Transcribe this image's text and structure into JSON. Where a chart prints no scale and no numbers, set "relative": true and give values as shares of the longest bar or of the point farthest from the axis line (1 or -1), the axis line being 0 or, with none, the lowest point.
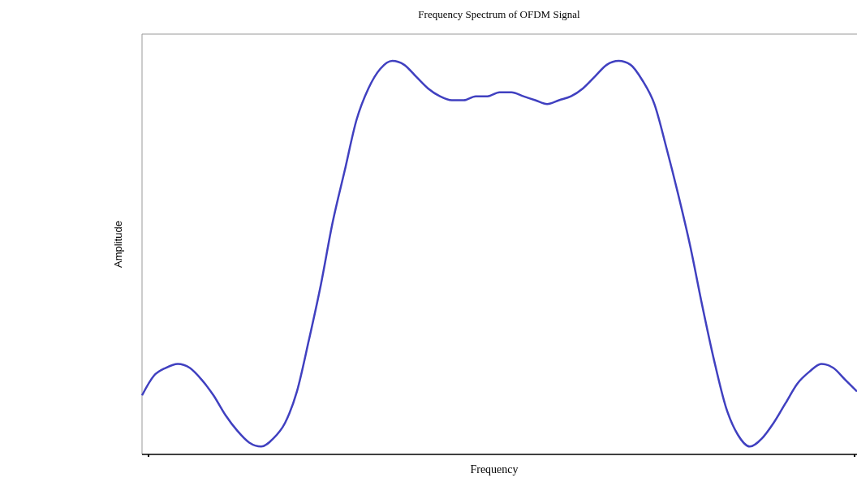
{
  "chart_data": {
    "type": "line",
    "title": "Frequency Spectrum of OFDM Signal",
    "xlabel": "Frequency",
    "ylabel": "Amplitude",
    "relative": true,
    "marker": "none",
    "line_style": "solid",
    "categories": [
      null,
      null,
      null,
      null,
      null,
      null,
      null,
      null,
      null,
      null,
      null,
      null,
      null,
      null,
      null,
      null,
      null,
      null,
      null,
      null,
      null,
      null,
      null,
      null,
      null,
      null,
      null,
      null,
      null,
      null,
      null,
      null,
      null,
      null,
      null,
      null,
      null,
      null,
      null,
      null,
      null,
      null,
      null,
      null,
      null,
      null,
      null,
      null,
      null,
      null,
      null,
      null,
      null,
      null,
      null,
      null,
      null,
      null,
      null,
      null,
      null
    ],
    "series": [
      {
        "color": "#4040c0",
        "values": [
          0.15,
          0.2,
          0.22,
          0.23,
          0.22,
          0.19,
          0.15,
          0.1,
          0.06,
          0.03,
          0.02,
          0.04,
          0.08,
          0.16,
          0.29,
          0.43,
          0.59,
          0.72,
          0.85,
          0.93,
          0.98,
          1,
          0.99,
          0.96,
          0.93,
          0.91,
          0.9,
          0.9,
          0.91,
          0.91,
          0.92,
          0.92,
          0.91,
          0.9,
          0.89,
          0.9,
          0.91,
          0.93,
          0.96,
          0.99,
          1,
          0.99,
          0.95,
          0.89,
          0.78,
          0.66,
          0.53,
          0.38,
          0.24,
          0.12,
          0.05,
          0.02,
          0.04,
          0.08,
          0.13,
          0.18,
          0.21,
          0.23,
          0.22,
          0.19,
          0.16
        ]
      }
    ]
  }
}
